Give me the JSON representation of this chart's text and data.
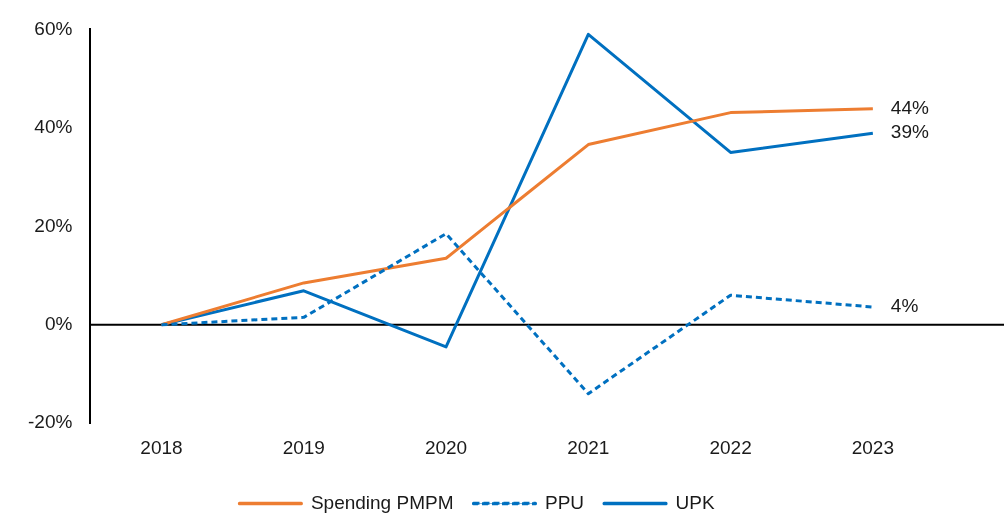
{
  "chart_data": {
    "type": "line",
    "categories": [
      "2018",
      "2019",
      "2020",
      "2021",
      "2022",
      "2023"
    ],
    "series": [
      {
        "name": "Spending PMPM",
        "color": "#ed7d31",
        "line_style": "solid",
        "values": [
          0,
          8.5,
          13.5,
          36.6,
          43.1,
          43.9
        ],
        "value_labels": [
          null,
          null,
          null,
          null,
          null,
          "44%"
        ]
      },
      {
        "name": "PPU",
        "color": "#0070c0",
        "line_style": "dashed",
        "values": [
          0,
          1.5,
          18.5,
          -14.0,
          6.0,
          3.6
        ],
        "value_labels": [
          null,
          null,
          null,
          null,
          null,
          "4%"
        ]
      },
      {
        "name": "UPK",
        "color": "#0070c0",
        "line_style": "solid",
        "values": [
          0,
          6.9,
          -4.5,
          59.0,
          35.0,
          38.9
        ],
        "value_labels": [
          null,
          null,
          null,
          null,
          null,
          "39%"
        ]
      }
    ],
    "ylim": [
      -20,
      60
    ],
    "yticks": [
      {
        "value": -20,
        "label": "-20%"
      },
      {
        "value": 0,
        "label": "0%"
      },
      {
        "value": 20,
        "label": "20%"
      },
      {
        "value": 40,
        "label": "40%"
      },
      {
        "value": 60,
        "label": "60%"
      }
    ],
    "ref_lines": [
      {
        "axis": "y",
        "value": 0,
        "color": "#000000"
      }
    ],
    "grid": false,
    "marker": "none",
    "legend": "bottom"
  }
}
